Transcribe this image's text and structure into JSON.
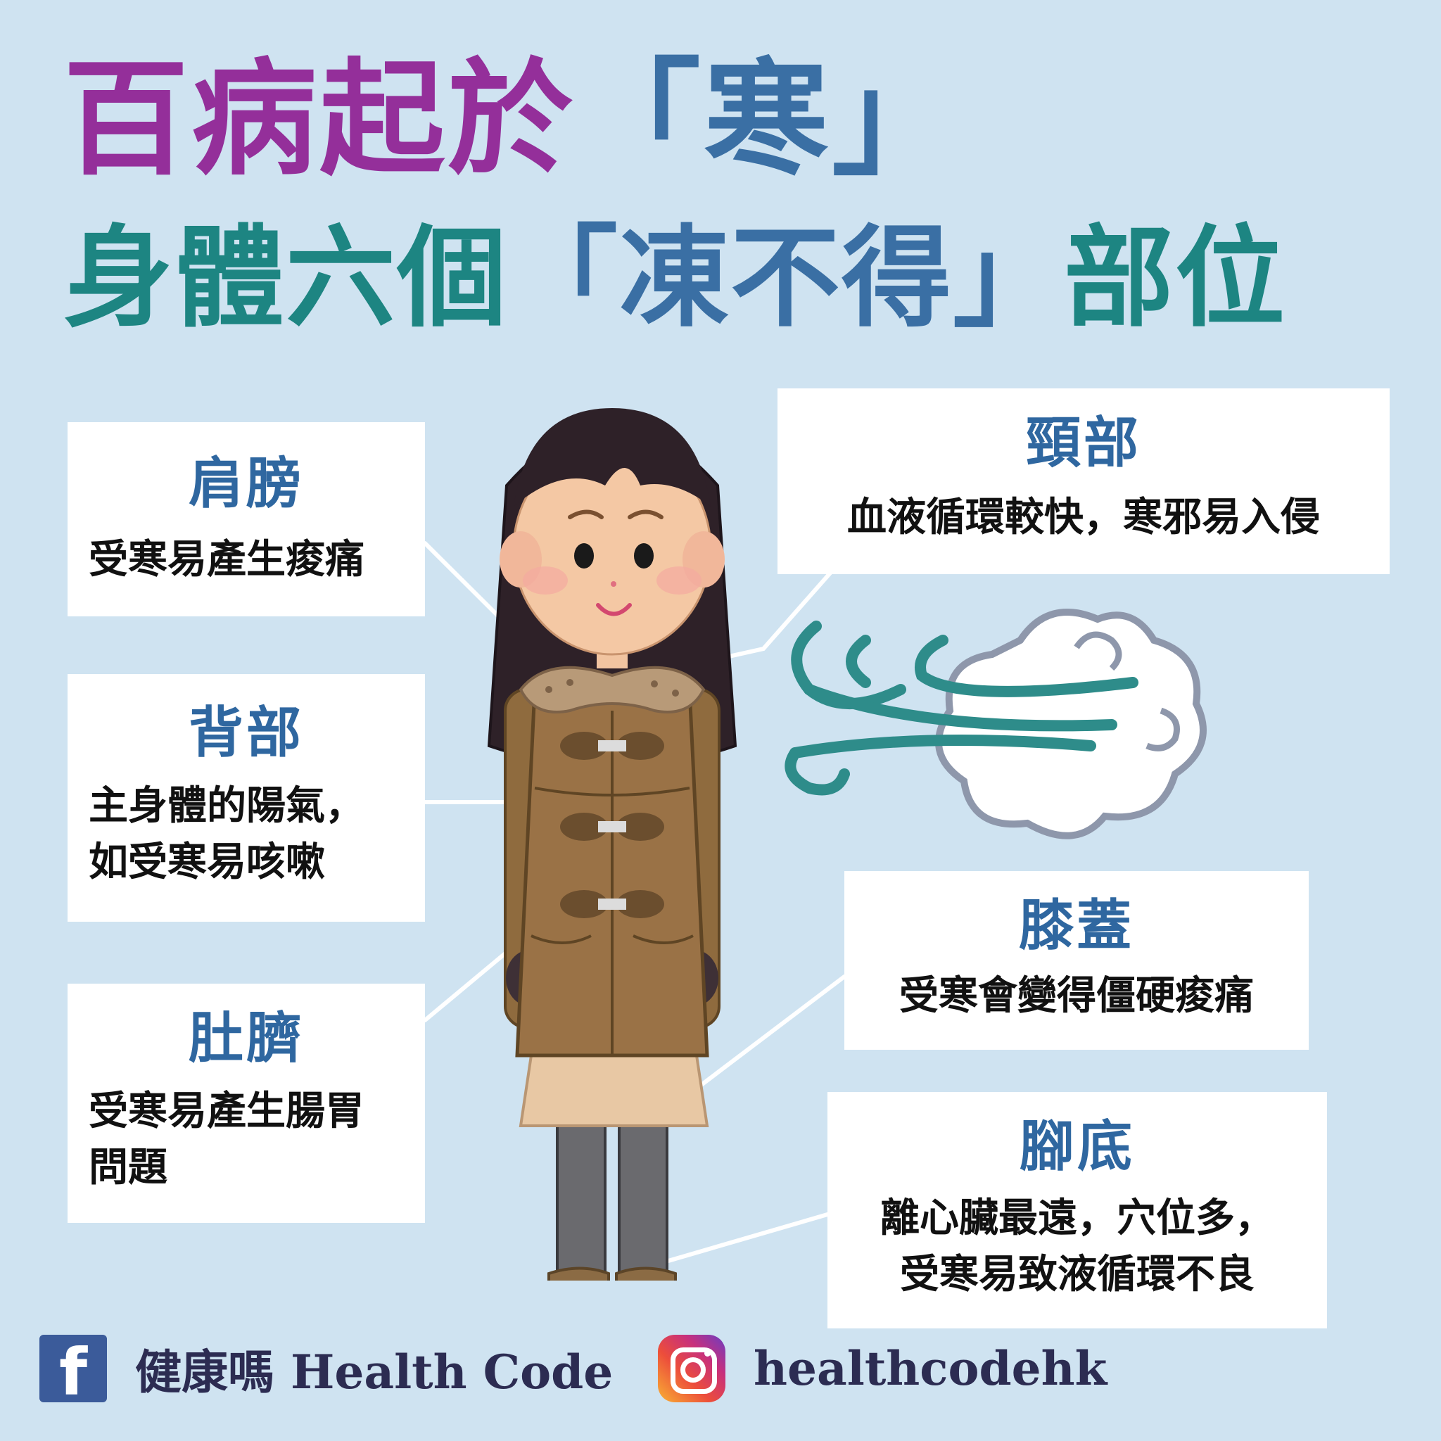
{
  "title": {
    "line1_a": "百病起於",
    "line1_b": "「寒」",
    "line2_a": "身體六個",
    "line2_b": "「凍不得」",
    "line2_c": "部位"
  },
  "parts": {
    "shoulder": {
      "title": "肩膀",
      "body": [
        "受寒易產生痠痛"
      ]
    },
    "back": {
      "title": "背部",
      "body": [
        "主身體的陽氣，",
        "如受寒易咳嗽"
      ]
    },
    "navel": {
      "title": "肚臍",
      "body": [
        "受寒易產生腸胃",
        "問題"
      ]
    },
    "neck": {
      "title": "頸部",
      "body": [
        "血液循環較快，寒邪易入侵"
      ]
    },
    "knee": {
      "title": "膝蓋",
      "body": [
        "受寒會變得僵硬痠痛"
      ]
    },
    "sole": {
      "title": "腳底",
      "body": [
        "離心臟最遠，穴位多，",
        "受寒易致液循環不良"
      ]
    }
  },
  "footer": {
    "facebook_name": "健康嗎 Health Code",
    "instagram_handle": "healthcodehk"
  },
  "colors": {
    "background": "#cfe3f1",
    "title_purple": "#942f9a",
    "title_blue": "#3a6fa4",
    "title_teal": "#1d8582",
    "card_heading": "#2f67a0"
  },
  "icons": [
    "facebook-icon",
    "instagram-icon",
    "wind-icon"
  ]
}
